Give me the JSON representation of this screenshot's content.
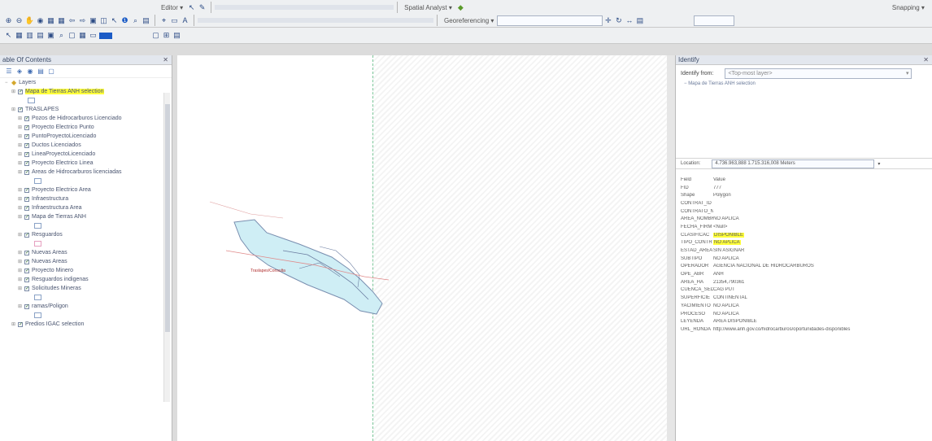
{
  "toolbar": {
    "editor_label": "Editor",
    "spatial_analyst_label": "Spatial Analyst",
    "georeferencing_label": "Georeferencing",
    "snapping_label": "Snapping"
  },
  "toc": {
    "title": "able Of Contents",
    "close": "✕",
    "layers_label": "Layers",
    "items": [
      {
        "label": "Mapa de Tierras ANH selection",
        "highlight": true,
        "checked": true,
        "indent": 1
      },
      {
        "label": "TRASLAPES",
        "checked": true,
        "indent": 1
      },
      {
        "label": "Pozos de Hidrocarburos Licenciado",
        "checked": true,
        "indent": 2
      },
      {
        "label": "Proyecto Electrico Punto",
        "checked": true,
        "indent": 2
      },
      {
        "label": "PuntoProyectoLicenciado",
        "checked": true,
        "indent": 2
      },
      {
        "label": "Ductos Licenciados",
        "checked": true,
        "indent": 2
      },
      {
        "label": "LineaProyectoLicenciado",
        "checked": true,
        "indent": 2
      },
      {
        "label": "Proyecto Electrico Linea",
        "checked": true,
        "indent": 2
      },
      {
        "label": "Areas de Hidrocarburos licenciadas",
        "checked": true,
        "indent": 2
      },
      {
        "label": "Proyecto Electrico Area",
        "checked": true,
        "indent": 2
      },
      {
        "label": "Infraestructura",
        "checked": true,
        "indent": 2
      },
      {
        "label": "Infraestructura Area",
        "checked": true,
        "indent": 2
      },
      {
        "label": "Mapa de Tierras ANH",
        "checked": true,
        "indent": 2
      },
      {
        "label": "Resguardos",
        "checked": true,
        "indent": 2
      },
      {
        "label": "Nuevas Areas",
        "checked": true,
        "indent": 2
      },
      {
        "label": "Nuevas Areas",
        "checked": true,
        "indent": 2
      },
      {
        "label": "Proyecto Minero",
        "checked": true,
        "indent": 2
      },
      {
        "label": "Resguardos indigenas",
        "checked": true,
        "indent": 2
      },
      {
        "label": "Solicitudes Mineras",
        "checked": true,
        "indent": 2
      },
      {
        "label": "ramas/Poligon",
        "checked": true,
        "indent": 2
      },
      {
        "label": "Predios IGAC selection",
        "checked": true,
        "indent": 1
      }
    ]
  },
  "identify": {
    "title": "Identify",
    "close": "✕",
    "from_label": "Identify from:",
    "from_value": "<Top-most layer>",
    "tree_item": "Mapa de Tierras ANH selection",
    "location_label": "Location:",
    "location_value": "4.736.963,888 1.715.316,008 Meters",
    "header_field": "Field",
    "header_value": "Value",
    "attributes": [
      {
        "f": "FID",
        "v": "777"
      },
      {
        "f": "Shape",
        "v": "Polygon"
      },
      {
        "f": "CONTRAT_ID",
        "v": ""
      },
      {
        "f": "CONTRATO_N",
        "v": ""
      },
      {
        "f": "AREA_NOMBR",
        "v": "NO APLICA"
      },
      {
        "f": "FECHA_FIRM",
        "v": "<Null>"
      },
      {
        "f": "CLASIFICAC",
        "v": "DISPONIBLE",
        "hl": true
      },
      {
        "f": "TIPO_CONTR",
        "v": "NO APLICA",
        "hl": true
      },
      {
        "f": "ESTAD_AREA",
        "v": "SIN ASIGNAR"
      },
      {
        "f": "SUBTIPO",
        "v": "NO APLICA"
      },
      {
        "f": "OPERADOR",
        "v": "AGENCIA NACIONAL DE HIDROCARBUROS"
      },
      {
        "f": "OPE_ABR",
        "v": "ANH"
      },
      {
        "f": "AREA_HA",
        "v": "21354,790361"
      },
      {
        "f": "CUENCA_SED",
        "v": "CAG PUT"
      },
      {
        "f": "SUPERFICIE",
        "v": "CONTINENTAL"
      },
      {
        "f": "YACIMIENTO",
        "v": "NO APLICA"
      },
      {
        "f": "PROCESO",
        "v": "NO APLICA"
      },
      {
        "f": "LEYENDA",
        "v": "AREA DISPONIBLE"
      },
      {
        "f": "URL_RONDA",
        "v": "http://www.anh.gov.co/hidrocarburos/oportunidades-disponibles"
      }
    ]
  }
}
